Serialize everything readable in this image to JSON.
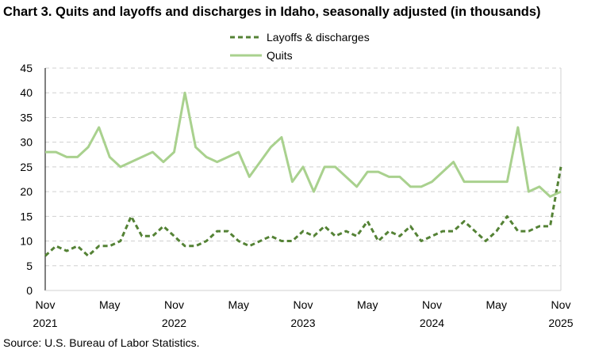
{
  "chart_data": {
    "type": "line",
    "title": "Chart 3. Quits and layoffs and discharges in Idaho, seasonally adjusted (in thousands)",
    "source": "Source: U.S. Bureau of Labor Statistics.",
    "x_start": "2021-11",
    "x_end": "2025-11",
    "frequency": "monthly",
    "x_ticks": [
      {
        "month_index": 0,
        "label": "Nov",
        "year": "2021"
      },
      {
        "month_index": 6,
        "label": "May",
        "year": ""
      },
      {
        "month_index": 12,
        "label": "Nov",
        "year": "2022"
      },
      {
        "month_index": 18,
        "label": "May",
        "year": ""
      },
      {
        "month_index": 24,
        "label": "Nov",
        "year": "2023"
      },
      {
        "month_index": 30,
        "label": "May",
        "year": ""
      },
      {
        "month_index": 36,
        "label": "Nov",
        "year": "2024"
      },
      {
        "month_index": 42,
        "label": "May",
        "year": ""
      },
      {
        "month_index": 48,
        "label": "Nov",
        "year": "2025"
      }
    ],
    "ylim": [
      0,
      45
    ],
    "y_ticks": [
      0,
      5,
      10,
      15,
      20,
      25,
      30,
      35,
      40,
      45
    ],
    "grid": "horizontal dashed",
    "legend": "top-center",
    "series": [
      {
        "name": "Layoffs & discharges",
        "color": "#548235",
        "style": "dashed",
        "values": [
          7,
          9,
          8,
          9,
          7,
          9,
          9,
          10,
          15,
          11,
          11,
          13,
          11,
          9,
          9,
          10,
          12,
          12,
          10,
          9,
          10,
          11,
          10,
          10,
          12,
          11,
          13,
          11,
          12,
          11,
          14,
          10,
          12,
          11,
          13,
          10,
          11,
          12,
          12,
          14,
          12,
          10,
          12,
          15,
          12,
          12,
          13,
          13,
          25
        ]
      },
      {
        "name": "Quits",
        "color": "#A9D18E",
        "style": "solid",
        "values": [
          28,
          28,
          27,
          27,
          29,
          33,
          27,
          25,
          26,
          27,
          28,
          26,
          28,
          40,
          29,
          27,
          26,
          27,
          28,
          23,
          26,
          29,
          31,
          22,
          25,
          20,
          25,
          25,
          23,
          21,
          24,
          24,
          23,
          23,
          21,
          21,
          22,
          24,
          26,
          22,
          22,
          22,
          22,
          22,
          33,
          20,
          21,
          19,
          20
        ]
      }
    ]
  }
}
